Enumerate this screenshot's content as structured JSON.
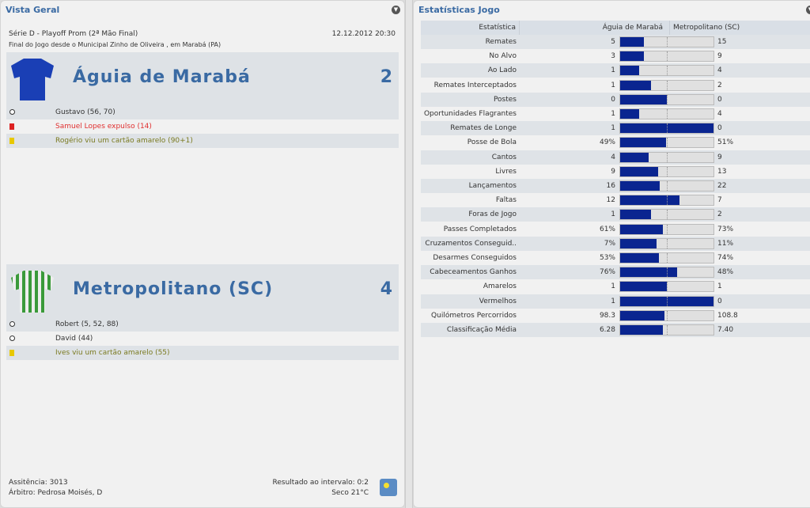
{
  "left": {
    "title": "Vista Geral",
    "competition": "Série D - Playoff Prom (2ª Mão Final)",
    "datetime": "12.12.2012 20:30",
    "venue": "Final do Jogo desde o Municipal Zinho de Oliveira , em Marabá (PA)",
    "home": {
      "name": "Águia de Marabá",
      "score": "2",
      "shirt_color": "#1a3fb5",
      "events": [
        {
          "icon": "ball-icon",
          "text": "Gustavo (56, 70)",
          "color": "#333333"
        },
        {
          "icon": "red-card-icon",
          "text": "Samuel Lopes expulso (14)",
          "color": "#e03030"
        },
        {
          "icon": "yellow-card-icon",
          "text": "Rogério viu um cartão amarelo (90+1)",
          "color": "#7a7a20"
        }
      ]
    },
    "away": {
      "name": "Metropolitano (SC)",
      "score": "4",
      "shirt_color": "#3a9a3a",
      "events": [
        {
          "icon": "ball-icon",
          "text": "Robert (5, 52, 88)",
          "color": "#333333"
        },
        {
          "icon": "ball-icon",
          "text": "David (44)",
          "color": "#333333"
        },
        {
          "icon": "yellow-card-icon",
          "text": "Ives viu um cartão amarelo (55)",
          "color": "#7a7a20"
        }
      ]
    },
    "attendance": "Assitência: 3013",
    "referee": "Árbitro: Pedrosa Moisés, D",
    "halftime": "Resultado ao intervalo: 0:2",
    "weather": "Seco 21°C",
    "weather_icon": "sun-icon"
  },
  "right": {
    "title": "Estatísticas Jogo",
    "headers": [
      "Estatística",
      "Águia de Marabá",
      "Metropolitano (SC)"
    ],
    "bar_color": "#0a2590",
    "rows": [
      [
        "Remates",
        "5",
        "15"
      ],
      [
        "No Alvo",
        "3",
        "9"
      ],
      [
        "Ao Lado",
        "1",
        "4"
      ],
      [
        "Remates Interceptados",
        "1",
        "2"
      ],
      [
        "Postes",
        "0",
        "0"
      ],
      [
        "Oportunidades Flagrantes",
        "1",
        "4"
      ],
      [
        "Remates de Longe",
        "1",
        "0"
      ],
      [
        "Posse de Bola",
        "49%",
        "51%"
      ],
      [
        "Cantos",
        "4",
        "9"
      ],
      [
        "Livres",
        "9",
        "13"
      ],
      [
        "Lançamentos",
        "16",
        "22"
      ],
      [
        "Faltas",
        "12",
        "7"
      ],
      [
        "Foras de Jogo",
        "1",
        "2"
      ],
      [
        "Passes Completados",
        "61%",
        "73%"
      ],
      [
        "Cruzamentos Conseguid..",
        "7%",
        "11%"
      ],
      [
        "Desarmes Conseguidos",
        "53%",
        "74%"
      ],
      [
        "Cabeceamentos Ganhos",
        "76%",
        "48%"
      ],
      [
        "Amarelos",
        "1",
        "1"
      ],
      [
        "Vermelhos",
        "1",
        "0"
      ],
      [
        "Quilómetros Percorridos",
        "98.3",
        "108.8"
      ],
      [
        "Classificação Média",
        "6.28",
        "7.40"
      ]
    ]
  }
}
